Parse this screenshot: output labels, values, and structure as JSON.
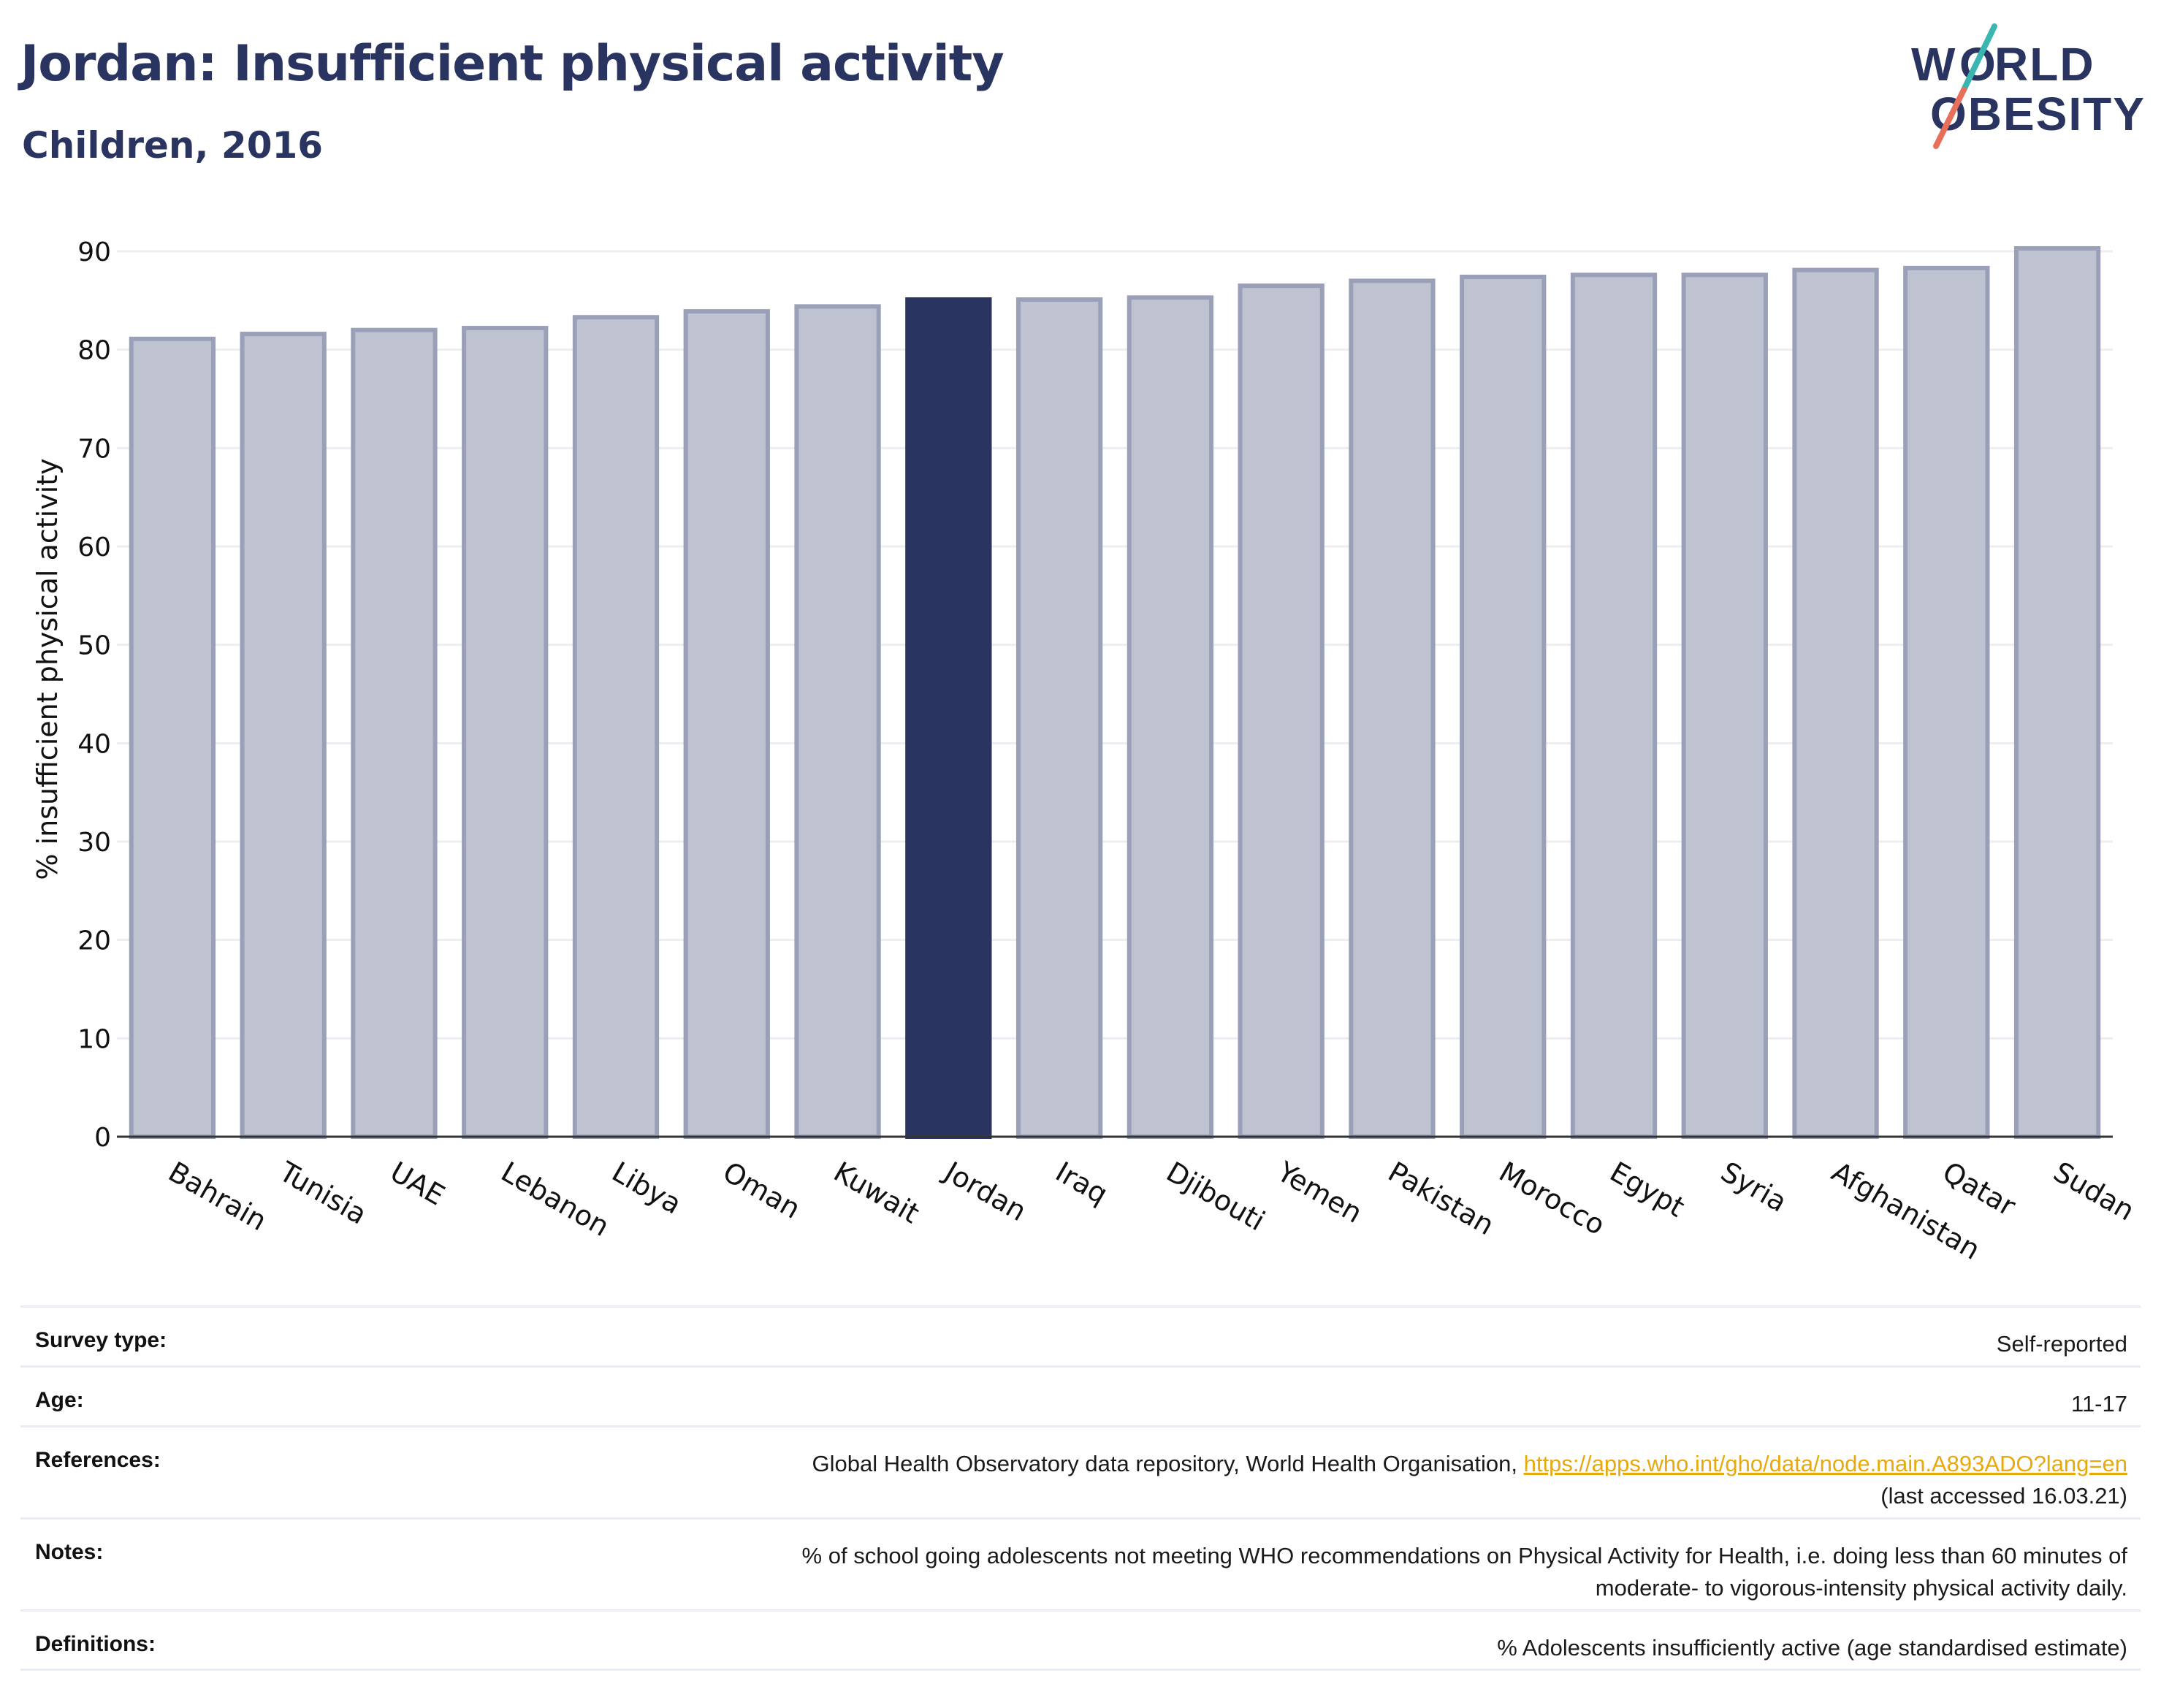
{
  "header": {
    "title": "Jordan: Insufficient physical activity",
    "subtitle": "Children, 2016"
  },
  "logo": {
    "line1": "WORLD",
    "line2": "OBESITY",
    "colors": {
      "text": "#2a3460",
      "slash_top": "#3ab5b0",
      "slash_bottom": "#e8705a"
    }
  },
  "chart_data": {
    "type": "bar",
    "ylabel": "% insufficient physical activity",
    "xlabel": "",
    "ylim": [
      0,
      90
    ],
    "yticks": [
      0,
      10,
      20,
      30,
      40,
      50,
      60,
      70,
      80,
      90
    ],
    "grid": true,
    "highlight": "Jordan",
    "colors": {
      "bar": "#bfc2d0",
      "bar_edge": "#9aa0b8",
      "highlight": "#2a3460",
      "axis": "#333333",
      "grid": "#eceef3"
    },
    "categories": [
      "Bahrain",
      "Tunisia",
      "UAE",
      "Lebanon",
      "Libya",
      "Oman",
      "Kuwait",
      "Jordan",
      "Iraq",
      "Djibouti",
      "Yemen",
      "Pakistan",
      "Morocco",
      "Egypt",
      "Syria",
      "Afghanistan",
      "Qatar",
      "Sudan"
    ],
    "values": [
      81.1,
      81.6,
      82.0,
      82.2,
      83.3,
      83.9,
      84.4,
      85.1,
      85.1,
      85.3,
      86.5,
      87.0,
      87.4,
      87.6,
      87.6,
      88.1,
      88.3,
      90.3
    ]
  },
  "info": {
    "rows": [
      {
        "label": "Survey type:",
        "value": "Self-reported"
      },
      {
        "label": "Age:",
        "value": "11-17"
      },
      {
        "label": "References:",
        "value": "Global Health Observatory data repository, World Health Organisation,",
        "link": "https://apps.who.int/gho/data/node.main.A893ADO?lang=en",
        "value2": "(last accessed 16.03.21)"
      },
      {
        "label": "Notes:",
        "value": "% of school going adolescents not meeting WHO recommendations on Physical Activity for Health, i.e. doing less than 60 minutes of",
        "value2": "moderate- to vigorous-intensity physical activity daily."
      },
      {
        "label": "Definitions:",
        "value": "% Adolescents insufficiently active (age standardised estimate)"
      }
    ]
  }
}
